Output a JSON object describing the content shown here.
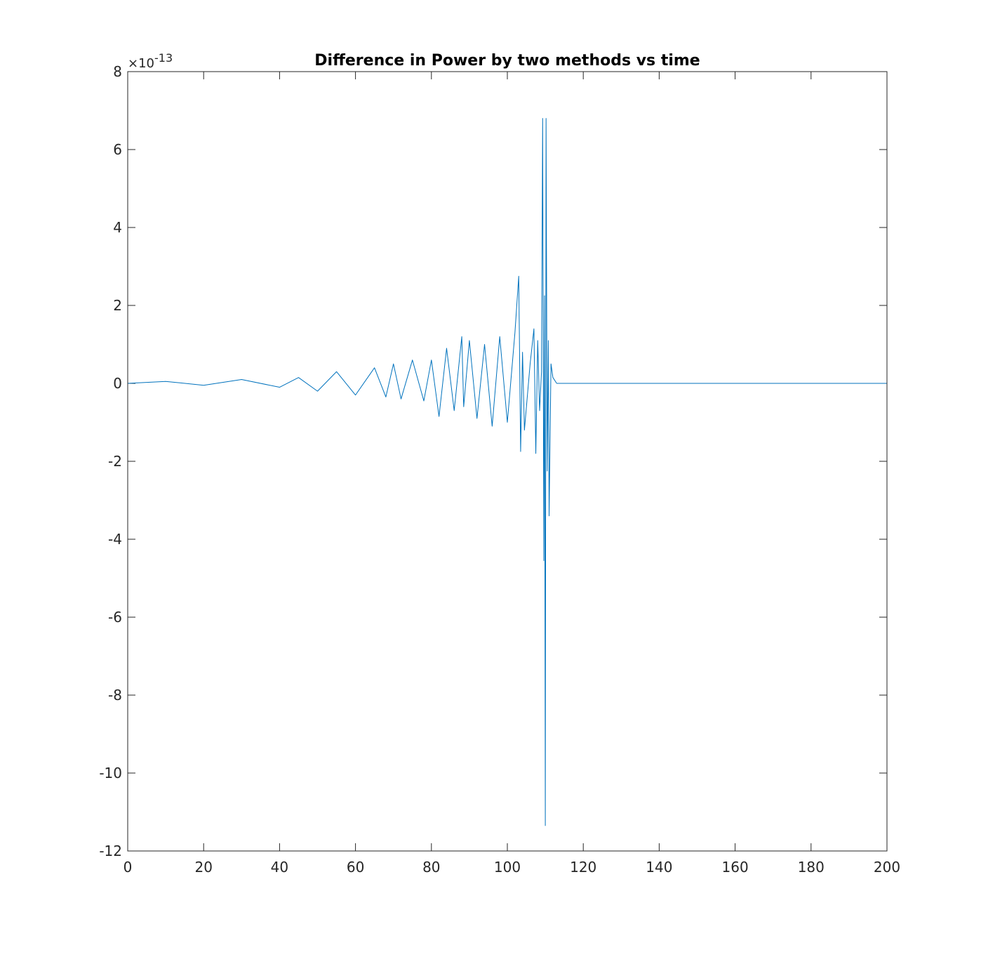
{
  "chart_data": {
    "type": "line",
    "title": "Difference in Power by two methods vs time",
    "xlabel": "",
    "ylabel": "",
    "exponent_label": {
      "base": "×10",
      "power": "-13"
    },
    "xlim": [
      0,
      200
    ],
    "ylim": [
      -12,
      8
    ],
    "y_scale_factor": 1e-13,
    "x_ticks": [
      0,
      20,
      40,
      60,
      80,
      100,
      120,
      140,
      160,
      180,
      200
    ],
    "x_tick_labels": [
      "0",
      "20",
      "40",
      "60",
      "80",
      "100",
      "120",
      "140",
      "160",
      "180",
      "200"
    ],
    "y_ticks": [
      -12,
      -10,
      -8,
      -6,
      -4,
      -2,
      0,
      2,
      4,
      6,
      8
    ],
    "y_tick_labels": [
      "-12",
      "-10",
      "-8",
      "-6",
      "-4",
      "-2",
      "0",
      "2",
      "4",
      "6",
      "8"
    ],
    "grid": false,
    "box": true,
    "series": [
      {
        "color": "#0072BD",
        "x": [
          0,
          10,
          20,
          30,
          40,
          45,
          50,
          55,
          60,
          65,
          68,
          70,
          72,
          75,
          78,
          80,
          82,
          84,
          86,
          88,
          88.5,
          90,
          92,
          94,
          96,
          98,
          100,
          102,
          103,
          103.5,
          104,
          104.5,
          106,
          107,
          107.5,
          108,
          108.5,
          109,
          109.3,
          109.6,
          109.8,
          110,
          110.2,
          110.5,
          110.8,
          111,
          111.5,
          112,
          113,
          120,
          140,
          160,
          180,
          200
        ],
        "y": [
          0,
          0.05,
          -0.05,
          0.1,
          -0.1,
          0.15,
          -0.2,
          0.3,
          -0.3,
          0.4,
          -0.35,
          0.5,
          -0.4,
          0.6,
          -0.45,
          0.6,
          -0.85,
          0.9,
          -0.7,
          1.2,
          -0.6,
          1.1,
          -0.9,
          1.0,
          -1.1,
          1.2,
          -1.0,
          1.3,
          2.75,
          -1.75,
          0.8,
          -1.2,
          0.5,
          1.4,
          -1.8,
          1.1,
          -0.7,
          0.3,
          6.8,
          -4.55,
          2.25,
          -11.35,
          6.8,
          -2.25,
          1.1,
          -3.4,
          0.5,
          0.15,
          0,
          0,
          0,
          0,
          0,
          0
        ]
      }
    ]
  }
}
